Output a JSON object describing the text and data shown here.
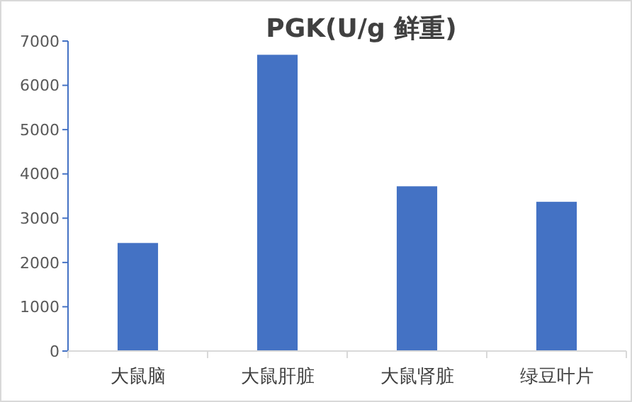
{
  "chart_data": {
    "type": "bar",
    "title": "PGK(U/g 鲜重)",
    "categories": [
      "大鼠脑",
      "大鼠肝脏",
      "大鼠肾脏",
      "绿豆叶片"
    ],
    "values": [
      2440,
      6690,
      3720,
      3370
    ],
    "color": "#4472c4",
    "ylim": [
      0,
      7000
    ],
    "yticks": [
      0,
      1000,
      2000,
      3000,
      4000,
      5000,
      6000,
      7000
    ],
    "grid": false
  }
}
